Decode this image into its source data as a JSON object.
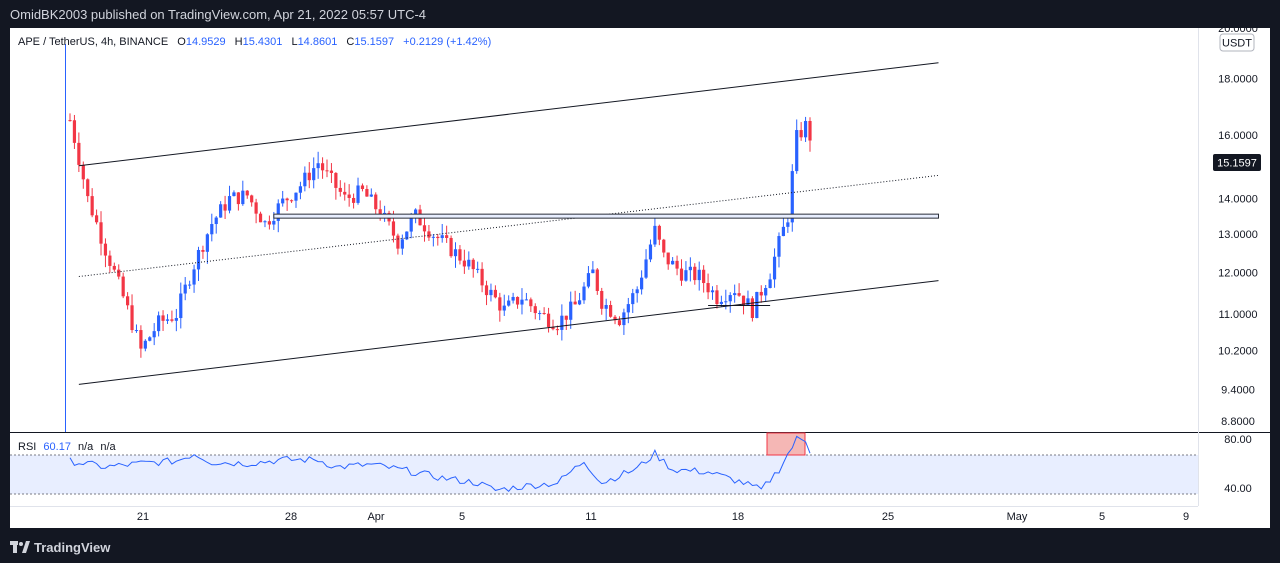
{
  "header": {
    "published_text": "OmidBK2003 published on TradingView.com, Apr 21, 2022 05:57 UTC-4"
  },
  "footer": {
    "brand": "TradingView",
    "logo_icon": "tradingview-logo-icon"
  },
  "legend": {
    "symbol": "APE / TetherUS, 4h, BINANCE",
    "open_label": "O",
    "open": "14.9529",
    "high_label": "H",
    "high": "15.4301",
    "low_label": "L",
    "low": "14.8601",
    "close_label": "C",
    "close": "15.1597",
    "change": "+0.2129 (+1.42%)"
  },
  "rsi_legend": {
    "name": "RSI",
    "value": "60.17",
    "na1": "n/a",
    "na2": "n/a"
  },
  "currency_badge": "USDT",
  "price_badge": "15.1597",
  "colors": {
    "up": "#2962ff",
    "down": "#f23645",
    "rsi_line": "#2962ff",
    "rsi_band": "#e8eeff",
    "highlight": "#f5b7b5"
  },
  "chart_data": {
    "type": "candlestick",
    "symbol": "APE / TetherUS",
    "interval": "4h",
    "exchange": "BINANCE",
    "price_axis": {
      "ticks": [
        "20.0000",
        "18.0000",
        "16.0000",
        "15.1597",
        "14.0000",
        "13.0000",
        "12.0000",
        "11.0000",
        "10.2000",
        "9.4000",
        "8.8000"
      ],
      "ylim": [
        8.6,
        20.0
      ],
      "scale": "log"
    },
    "rsi_axis": {
      "ticks": [
        "80.00",
        "40.00"
      ],
      "ylim": [
        25,
        85
      ],
      "band": [
        30,
        70
      ]
    },
    "time_axis": {
      "ticks": [
        "21",
        "28",
        "Apr",
        "5",
        "11",
        "18",
        "25",
        "May",
        "5",
        "9"
      ]
    },
    "path": [
      [
        0,
        16.5
      ],
      [
        2,
        14.0
      ],
      [
        4,
        12.6
      ],
      [
        6,
        11.4
      ],
      [
        8,
        10.2
      ],
      [
        10,
        10.8
      ],
      [
        12,
        11.0
      ],
      [
        14,
        12.2
      ],
      [
        16,
        13.3
      ],
      [
        18,
        14.0
      ],
      [
        20,
        14.1
      ],
      [
        22,
        13.3
      ],
      [
        24,
        13.9
      ],
      [
        26,
        14.4
      ],
      [
        28,
        15.1
      ],
      [
        29,
        14.7
      ],
      [
        31,
        14.0
      ],
      [
        33,
        14.2
      ],
      [
        35,
        13.6
      ],
      [
        37,
        12.8
      ],
      [
        39,
        13.5
      ],
      [
        41,
        13.0
      ],
      [
        43,
        12.6
      ],
      [
        45,
        12.2
      ],
      [
        47,
        11.6
      ],
      [
        49,
        11.1
      ],
      [
        51,
        11.4
      ],
      [
        53,
        11.0
      ],
      [
        55,
        10.8
      ],
      [
        57,
        11.2
      ],
      [
        59,
        12.0
      ],
      [
        60,
        11.3
      ],
      [
        62,
        10.9
      ],
      [
        64,
        11.6
      ],
      [
        66,
        13.1
      ],
      [
        67,
        12.4
      ],
      [
        69,
        12.0
      ],
      [
        71,
        11.9
      ],
      [
        73,
        11.4
      ],
      [
        75,
        11.6
      ],
      [
        77,
        11.1
      ],
      [
        79,
        12.0
      ],
      [
        81,
        13.5
      ],
      [
        82,
        15.9
      ],
      [
        83,
        16.3
      ],
      [
        84,
        15.6
      ]
    ],
    "rsi_path": [
      [
        0,
        62
      ],
      [
        4,
        57
      ],
      [
        8,
        60
      ],
      [
        12,
        62
      ],
      [
        14,
        68
      ],
      [
        16,
        61
      ],
      [
        20,
        60
      ],
      [
        24,
        63
      ],
      [
        28,
        63
      ],
      [
        30,
        57
      ],
      [
        34,
        59
      ],
      [
        38,
        54
      ],
      [
        42,
        48
      ],
      [
        46,
        44
      ],
      [
        48,
        38
      ],
      [
        52,
        42
      ],
      [
        55,
        44
      ],
      [
        58,
        62
      ],
      [
        60,
        44
      ],
      [
        64,
        56
      ],
      [
        66,
        68
      ],
      [
        68,
        55
      ],
      [
        72,
        53
      ],
      [
        76,
        44
      ],
      [
        78,
        38
      ],
      [
        80,
        55
      ],
      [
        82,
        80
      ],
      [
        83,
        79
      ],
      [
        84,
        62
      ]
    ],
    "drawings": {
      "upper_channel": [
        [
          1,
          15.0
        ],
        [
          98,
          18.6
        ]
      ],
      "lower_channel": [
        [
          1,
          9.5
        ],
        [
          98,
          11.8
        ]
      ],
      "mid_channel": [
        [
          1,
          11.9
        ],
        [
          98,
          14.7
        ]
      ],
      "horizontal_zone": [
        [
          23,
          13.5
        ],
        [
          98,
          13.5
        ]
      ],
      "short_segment": [
        [
          72,
          11.2
        ],
        [
          79,
          11.2
        ]
      ]
    }
  }
}
